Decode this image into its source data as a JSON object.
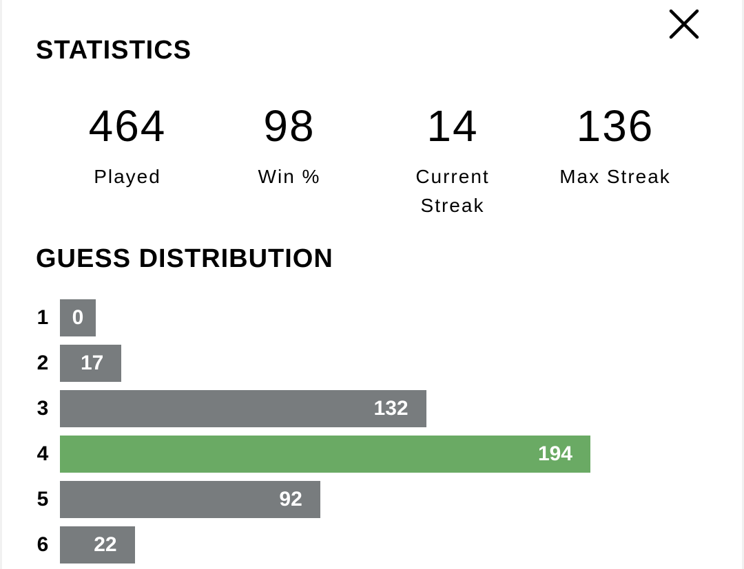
{
  "title": "STATISTICS",
  "close_icon": "close-icon",
  "stats": [
    {
      "value": "464",
      "label": "Played"
    },
    {
      "value": "98",
      "label": "Win %"
    },
    {
      "value": "14",
      "label": "Current Streak"
    },
    {
      "value": "136",
      "label": "Max Streak"
    }
  ],
  "distribution_title": "GUESS DISTRIBUTION",
  "colors": {
    "bar": "#787c7e",
    "highlight": "#6aaa64"
  },
  "chart_data": {
    "type": "bar",
    "orientation": "horizontal",
    "title": "GUESS DISTRIBUTION",
    "categories": [
      "1",
      "2",
      "3",
      "4",
      "5",
      "6"
    ],
    "values": [
      0,
      17,
      132,
      194,
      92,
      22
    ],
    "highlighted_index": 3
  }
}
